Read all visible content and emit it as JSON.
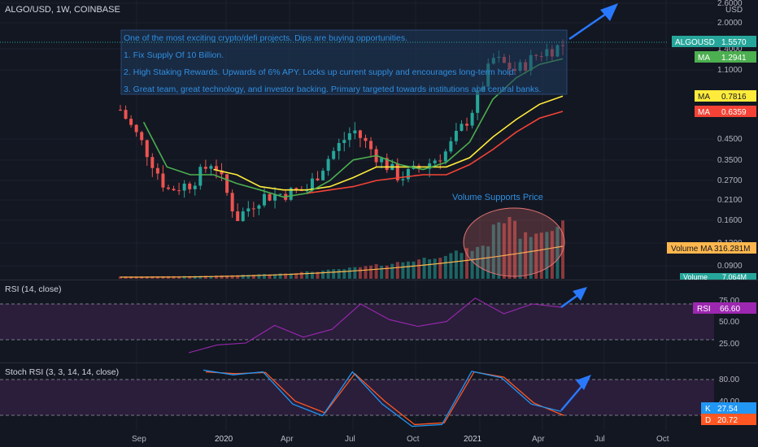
{
  "colors": {
    "background": "#131722",
    "grid": "#1e222d",
    "candle_up": "#26a69a",
    "candle_down": "#ef5350",
    "ma_fast": "#4caf50",
    "ma_mid": "#ffeb3b",
    "ma_slow": "#f44336",
    "volume_ma": "#ffb74d",
    "rsi_line": "#9c27b0",
    "rsi_band": "#2a1e3b",
    "stoch_k": "#2196f3",
    "stoch_d": "#ff5722",
    "note_bg": "#1f3a5f",
    "note_text": "#2f8fe0",
    "arrow": "#2979ff",
    "highlight_circle": "#e57373"
  },
  "header": {
    "symbol_title": "ALGO/USD, 1W, COINBASE"
  },
  "note": {
    "lines": [
      "One of the most exciting crypto/defi projects. Dips are buying opportunities.",
      "1. Fix Supply Of 10 Billion.",
      "2. High Staking Rewards. Upwards of 6% APY. Locks up current supply and encourages long-term hold.",
      "3. Great team, great technology, and investor backing. Primary targeted towards institutions and central banks."
    ]
  },
  "annotation": {
    "volume_label": "Volume Supports Price"
  },
  "price_axis": {
    "unit": "USD",
    "ticks": [
      "2.6000",
      "2.0000",
      "1.4000",
      "1.1000",
      "0.4500",
      "0.3500",
      "0.2700",
      "0.2100",
      "0.1600",
      "0.1200",
      "0.0900"
    ]
  },
  "badges": [
    {
      "label": "ALGOUSD",
      "value": "1.5570",
      "color": "#26a69a"
    },
    {
      "label": "MA",
      "value": "1.2941",
      "color": "#4caf50"
    },
    {
      "label": "MA",
      "value": "0.7816",
      "color": "#ffeb3b"
    },
    {
      "label": "MA",
      "value": "0.6359",
      "color": "#f44336"
    },
    {
      "label": "Volume MA",
      "value": "316.281M",
      "color": "#ffb74d"
    },
    {
      "label": "Volume",
      "value": "7.064M",
      "color": "#26a69a"
    }
  ],
  "rsi_panel": {
    "title": "RSI (14, close)",
    "ticks": [
      "75.00",
      "50.00",
      "25.00"
    ],
    "badge_label": "RSI",
    "badge_value": "66.60"
  },
  "stoch_panel": {
    "title": "Stoch RSI (3, 3, 14, 14, close)",
    "ticks": [
      "80.00",
      "40.00"
    ],
    "k_label": "K",
    "k_value": "27.54",
    "d_label": "D",
    "d_value": "20.72"
  },
  "time_axis": {
    "ticks": [
      "Sep",
      "2020",
      "Apr",
      "Jul",
      "Oct",
      "2021",
      "Apr",
      "Jul",
      "Oct"
    ]
  },
  "chart_data": [
    {
      "type": "line",
      "title": "ALGO/USD, 1W, COINBASE",
      "x": [
        "2019-07",
        "2019-09",
        "2019-11",
        "2020-01",
        "2020-02",
        "2020-03",
        "2020-04",
        "2020-05",
        "2020-06",
        "2020-07",
        "2020-08",
        "2020-09",
        "2020-10",
        "2020-11",
        "2020-12",
        "2021-01",
        "2021-02",
        "2021-03",
        "2021-04",
        "2021-05"
      ],
      "series": [
        {
          "name": "ALGOUSD",
          "values": [
            0.65,
            0.4,
            0.22,
            0.24,
            0.33,
            0.15,
            0.2,
            0.21,
            0.22,
            0.35,
            0.5,
            0.35,
            0.26,
            0.3,
            0.37,
            0.6,
            1.3,
            1.1,
            1.4,
            1.557
          ]
        },
        {
          "name": "MA",
          "values": [
            null,
            0.55,
            0.3,
            0.27,
            0.27,
            0.24,
            0.22,
            0.2,
            0.21,
            0.25,
            0.33,
            0.35,
            0.31,
            0.29,
            0.32,
            0.42,
            0.75,
            1.0,
            1.2,
            1.2941
          ]
        },
        {
          "name": "MA",
          "values": [
            null,
            null,
            null,
            null,
            0.29,
            0.27,
            0.23,
            0.22,
            0.22,
            0.23,
            0.26,
            0.3,
            0.3,
            0.3,
            0.3,
            0.34,
            0.45,
            0.57,
            0.7,
            0.7816
          ]
        },
        {
          "name": "MA",
          "values": [
            null,
            null,
            null,
            null,
            null,
            null,
            null,
            null,
            0.21,
            0.22,
            0.23,
            0.25,
            0.26,
            0.27,
            0.27,
            0.31,
            0.38,
            0.48,
            0.58,
            0.6359
          ]
        }
      ],
      "ylim": [
        0.07,
        2.8
      ],
      "log_scale": true,
      "grid": true,
      "candlestick": true
    },
    {
      "type": "bar",
      "title": "",
      "series": [
        {
          "name": "Volume MA",
          "last_value": "316.281M"
        },
        {
          "name": "Volume",
          "last_value": "7.064M"
        }
      ]
    },
    {
      "type": "line",
      "title": "RSI (14, close)",
      "x": [
        "2019-07",
        "2019-09",
        "2019-11",
        "2020-01",
        "2020-03",
        "2020-05",
        "2020-07",
        "2020-09",
        "2020-11",
        "2021-01",
        "2021-02",
        "2021-03",
        "2021-04",
        "2021-05"
      ],
      "series": [
        {
          "name": "RSI",
          "values": [
            20,
            28,
            30,
            48,
            36,
            44,
            70,
            54,
            47,
            52,
            76,
            60,
            70,
            66.6
          ]
        }
      ],
      "ylim": [
        10,
        85
      ],
      "bands": [
        30,
        70
      ]
    },
    {
      "type": "line",
      "title": "Stoch RSI (3, 3, 14, 14, close)",
      "x": [
        "2019-09",
        "2019-11",
        "2020-01",
        "2020-03",
        "2020-05",
        "2020-07",
        "2020-09",
        "2020-11",
        "2021-01",
        "2021-02",
        "2021-03",
        "2021-04",
        "2021-05"
      ],
      "series": [
        {
          "name": "K",
          "values": [
            98,
            90,
            95,
            40,
            20,
            95,
            40,
            2,
            5,
            96,
            85,
            40,
            27.54
          ]
        },
        {
          "name": "D",
          "values": [
            95,
            92,
            94,
            45,
            25,
            92,
            45,
            5,
            8,
            95,
            86,
            42,
            20.72
          ]
        }
      ],
      "ylim": [
        0,
        100
      ],
      "bands": [
        20,
        80
      ]
    }
  ]
}
